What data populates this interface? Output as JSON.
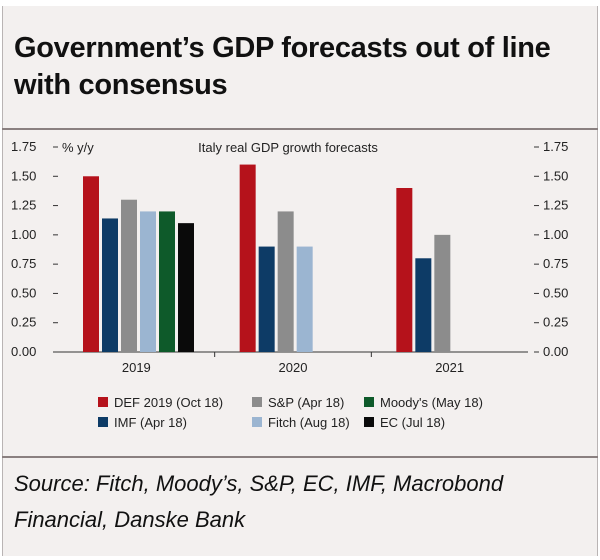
{
  "header": {
    "title": "Government’s GDP forecasts out of line with consensus"
  },
  "chart_data": {
    "type": "bar",
    "title": "Italy real GDP growth forecasts",
    "ylabel": "% y/y",
    "ylim": [
      0,
      1.75
    ],
    "yticks": [
      "0.00",
      "0.25",
      "0.50",
      "0.75",
      "1.00",
      "1.25",
      "1.50",
      "1.75"
    ],
    "categories": [
      "2019",
      "2020",
      "2021"
    ],
    "series": [
      {
        "name": "DEF 2019 (Oct 18)",
        "color": "#b5121b",
        "values": [
          1.5,
          1.6,
          1.4
        ]
      },
      {
        "name": "IMF (Apr 18)",
        "color": "#0d3b66",
        "values": [
          1.14,
          0.9,
          0.8
        ]
      },
      {
        "name": "S&P (Apr 18)",
        "color": "#8c8c8c",
        "values": [
          1.3,
          1.2,
          1.0
        ]
      },
      {
        "name": "Fitch (Aug 18)",
        "color": "#9bb5d1",
        "values": [
          1.2,
          0.9,
          null
        ]
      },
      {
        "name": "Moody's (May 18)",
        "color": "#0e5a2a",
        "values": [
          1.2,
          null,
          null
        ]
      },
      {
        "name": "EC (Jul 18)",
        "color": "#0a0a0a",
        "values": [
          1.1,
          null,
          null
        ]
      }
    ],
    "legend_position": "bottom"
  },
  "footer": {
    "source": "Source: Fitch, Moody’s, S&P, EC, IMF, Macrobond Financial, Danske Bank"
  }
}
